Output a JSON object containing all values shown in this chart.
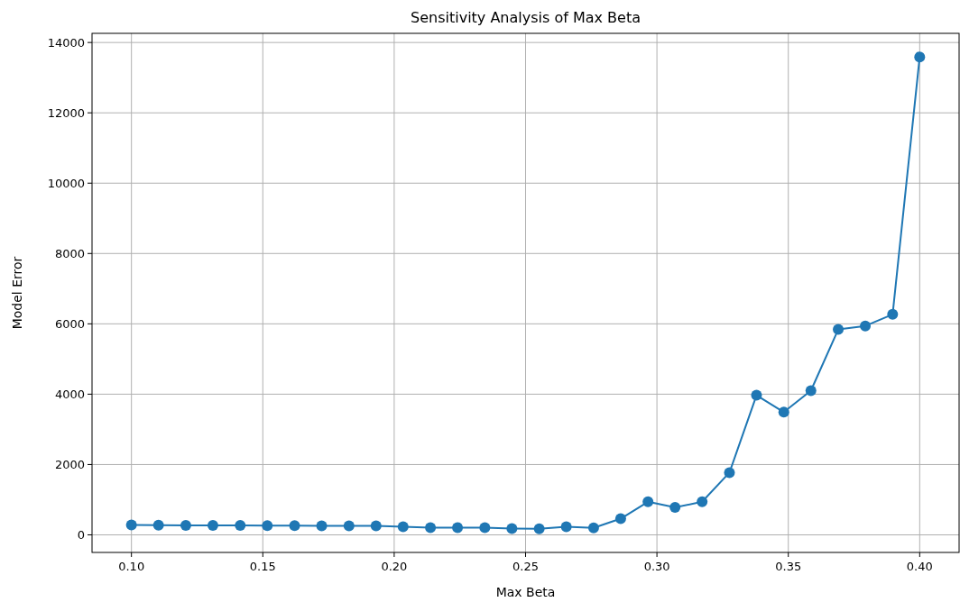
{
  "chart_data": {
    "type": "line",
    "title": "Sensitivity Analysis of Max Beta",
    "xlabel": "Max Beta",
    "ylabel": "Model Error",
    "x": [
      0.1,
      0.1103,
      0.1207,
      0.131,
      0.1414,
      0.1517,
      0.1621,
      0.1724,
      0.1828,
      0.1931,
      0.2034,
      0.2138,
      0.2241,
      0.2345,
      0.2448,
      0.2552,
      0.2655,
      0.2759,
      0.2862,
      0.2966,
      0.3069,
      0.3172,
      0.3276,
      0.3379,
      0.3483,
      0.3586,
      0.369,
      0.3793,
      0.3897,
      0.4
    ],
    "series": [
      {
        "color": "#1f77b4",
        "values": [
          280,
          275,
          270,
          270,
          270,
          265,
          265,
          255,
          255,
          255,
          230,
          205,
          205,
          205,
          180,
          170,
          230,
          200,
          460,
          940,
          780,
          940,
          1770,
          3970,
          3490,
          4100,
          5840,
          5940,
          6270,
          13590
        ]
      }
    ],
    "xlim": [
      0.085,
      0.415
    ],
    "ylim": [
      -500,
      14260
    ],
    "xticks": [
      {
        "value": 0.1,
        "label": "0.10"
      },
      {
        "value": 0.15,
        "label": "0.15"
      },
      {
        "value": 0.2,
        "label": "0.20"
      },
      {
        "value": 0.25,
        "label": "0.25"
      },
      {
        "value": 0.3,
        "label": "0.30"
      },
      {
        "value": 0.35,
        "label": "0.35"
      },
      {
        "value": 0.4,
        "label": "0.40"
      }
    ],
    "yticks": [
      0,
      2000,
      4000,
      6000,
      8000,
      10000,
      12000,
      14000
    ],
    "grid": true,
    "marker": "circle",
    "line_style": "solid"
  }
}
